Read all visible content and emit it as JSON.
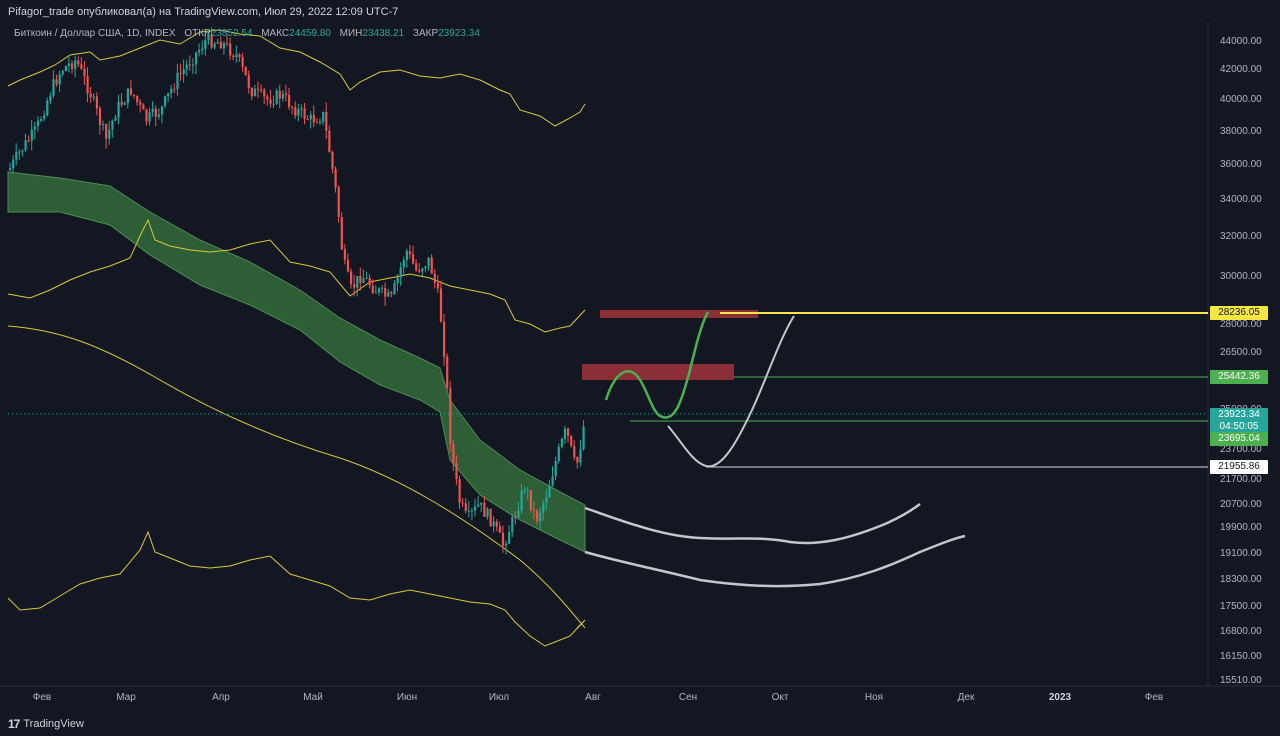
{
  "header": {
    "published_by": "Pifagor_trade опубликовал(а) на TradingView.com, Июл 29, 2022 12:09 UTC-7"
  },
  "legend": {
    "symbol": "Биткоин / Доллар США, 1D, INDEX",
    "open_label": "ОТКР",
    "open": "23852.54",
    "high_label": "МАКС",
    "high": "24459.80",
    "low_label": "МИН",
    "low": "23438.21",
    "close_label": "ЗАКР",
    "close": "23923.34"
  },
  "price_axis": {
    "ticks": [
      "44000.00",
      "42000.00",
      "40000.00",
      "38000.00",
      "36000.00",
      "34000.00",
      "32000.00",
      "30000.00",
      "28000.00",
      "26500.00",
      "25000.00",
      "23700.00",
      "21700.00",
      "20700.00",
      "19900.00",
      "19100.00",
      "18300.00",
      "17500.00",
      "16800.00",
      "16150.00",
      "15510.00"
    ]
  },
  "price_tags": {
    "yellow_level": "28236.05",
    "green_level": "25442.36",
    "current_price": "23923.34",
    "countdown": "04:50:05",
    "lower_green_level": "23695.04",
    "white_level": "21955.86"
  },
  "time_axis": {
    "labels": [
      "Фев",
      "Мар",
      "Апр",
      "Май",
      "Июн",
      "Июл",
      "Авг",
      "Сен",
      "Окт",
      "Ноя",
      "Дек",
      "2023",
      "Фев"
    ]
  },
  "footer": {
    "brand": "TradingView",
    "brand_mark": "17"
  },
  "colors": {
    "background": "#131722",
    "up": "#26a69a",
    "down": "#ef5350",
    "band_fill": "#2e5e35",
    "yellow": "#f5e642",
    "green_line": "#4caf50",
    "resistance_zone": "#8b2e36"
  }
}
